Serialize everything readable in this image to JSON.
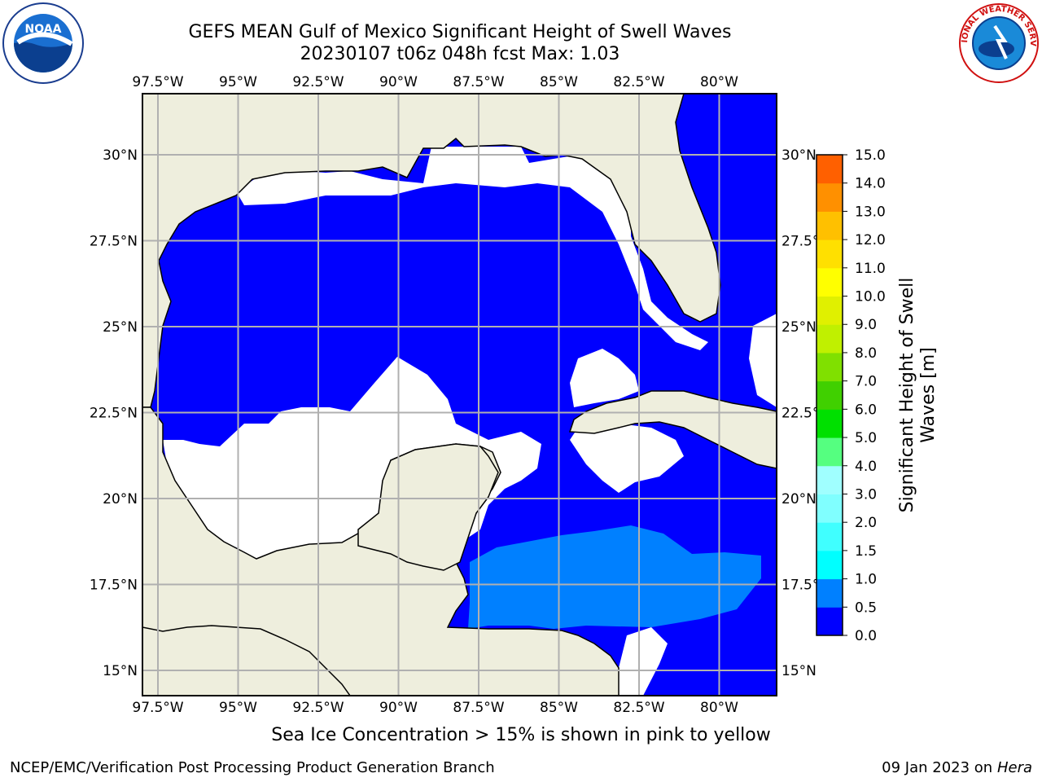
{
  "header": {
    "title_line1": "GEFS MEAN Gulf of Mexico Significant Height of Swell Waves",
    "title_line2": "20230107 t06z 048h fcst   Max: 1.03"
  },
  "axes": {
    "lon_labels": [
      "97.5°W",
      "95°W",
      "92.5°W",
      "90°W",
      "87.5°W",
      "85°W",
      "82.5°W",
      "80°W"
    ],
    "lat_labels": [
      "30°N",
      "27.5°N",
      "25°N",
      "22.5°N",
      "20°N",
      "17.5°N",
      "15°N"
    ],
    "lon_values": [
      -97.5,
      -95,
      -92.5,
      -90,
      -87.5,
      -85,
      -82.5,
      -80
    ],
    "lat_values": [
      30,
      27.5,
      25,
      22.5,
      20,
      17.5,
      15
    ]
  },
  "colorbar": {
    "label": "Significant Height of Swell Waves [m]",
    "ticks": [
      "0.0",
      "0.5",
      "1.0",
      "1.5",
      "2.0",
      "3.0",
      "4.0",
      "5.0",
      "6.0",
      "7.0",
      "8.0",
      "9.0",
      "10.0",
      "11.0",
      "12.0",
      "13.0",
      "14.0",
      "15.0"
    ],
    "colors": [
      "#0000ff",
      "#0080ff",
      "#00ffff",
      "#40ffff",
      "#80ffff",
      "#a0ffff",
      "#55ff80",
      "#00e000",
      "#40d000",
      "#80e000",
      "#c0f000",
      "#e0f000",
      "#ffff00",
      "#ffe000",
      "#ffc000",
      "#ff9000",
      "#ff6000",
      "#ff3000",
      "#ff0000"
    ]
  },
  "colors": {
    "land": "#eeeedd",
    "ocean_low": "#0000ff",
    "ocean_mid": "#0080ff",
    "ocean_high": "#00ffff"
  },
  "footer": {
    "note": "Sea Ice Concentration > 15% is shown in pink to yellow",
    "credit": "NCEP/EMC/Verification Post Processing Product Generation Branch",
    "date": "09 Jan 2023 on",
    "host": "Hera"
  },
  "logos": {
    "noaa_text": "NOAA",
    "nws_text": "NATIONAL WEATHER SERVICE"
  }
}
